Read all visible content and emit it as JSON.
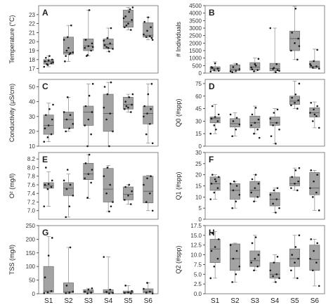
{
  "chart_data": [
    {
      "id": "A",
      "type": "box",
      "ylabel": "Temperature (°C)",
      "ylim": [
        16.5,
        24
      ],
      "yticks": [
        17,
        18,
        19,
        20,
        21,
        22,
        23
      ],
      "categories": [
        "S1",
        "S2",
        "S3",
        "S4",
        "S5",
        "S6"
      ],
      "stats": [
        {
          "min": 17.2,
          "q1": 17.5,
          "med": 17.8,
          "q3": 18.0,
          "max": 18.4
        },
        {
          "min": 17.8,
          "q1": 18.6,
          "med": 18.8,
          "q3": 20.5,
          "max": 21.8
        },
        {
          "min": 18.4,
          "q1": 19.0,
          "med": 19.5,
          "q3": 20.3,
          "max": 23.5
        },
        {
          "min": 18.9,
          "q1": 19.2,
          "med": 19.7,
          "q3": 20.3,
          "max": 21.5
        },
        {
          "min": 21.3,
          "q1": 21.6,
          "med": 22.2,
          "q3": 23.5,
          "max": 23.8
        },
        {
          "min": 20.2,
          "q1": 20.5,
          "med": 20.7,
          "q3": 22.1,
          "max": 22.7
        }
      ],
      "points": [
        [
          17.2,
          17.4,
          17.6,
          17.8,
          17.9,
          18.0,
          18.2,
          18.4,
          17.7,
          17.5
        ],
        [
          18.4,
          18.6,
          18.8,
          19.0,
          18.7,
          20.2,
          20.5,
          21.8,
          17.8,
          19.3
        ],
        [
          18.5,
          19.0,
          19.3,
          19.5,
          19.8,
          20.2,
          23.5,
          19.4,
          18.4
        ],
        [
          18.9,
          19.2,
          19.4,
          19.8,
          20.1,
          20.4,
          21.5,
          19.6,
          19.3
        ],
        [
          21.3,
          21.6,
          22.0,
          22.4,
          22.8,
          23.3,
          23.8,
          21.8,
          23.6,
          22.6
        ],
        [
          20.2,
          20.5,
          20.6,
          20.8,
          21.2,
          21.6,
          22.2,
          22.7,
          20.4
        ]
      ]
    },
    {
      "id": "B",
      "type": "box",
      "ylabel": "# Individuals",
      "ylim": [
        0,
        4500
      ],
      "yticks": [
        0,
        500,
        1000,
        1500,
        2000,
        2500,
        3000,
        3500,
        4000,
        4500
      ],
      "categories": [
        "S1",
        "S2",
        "S3",
        "S4",
        "S5",
        "S6"
      ],
      "stats": [
        {
          "min": 100,
          "q1": 180,
          "med": 300,
          "q3": 420,
          "max": 750
        },
        {
          "min": 50,
          "q1": 150,
          "med": 250,
          "q3": 550,
          "max": 650
        },
        {
          "min": 100,
          "q1": 200,
          "med": 400,
          "q3": 700,
          "max": 1000
        },
        {
          "min": 50,
          "q1": 150,
          "med": 300,
          "q3": 650,
          "max": 3000
        },
        {
          "min": 900,
          "q1": 1500,
          "med": 2300,
          "q3": 2800,
          "max": 4450
        },
        {
          "min": 300,
          "q1": 350,
          "med": 450,
          "q3": 800,
          "max": 1600
        }
      ],
      "points": [
        [
          100,
          200,
          300,
          400,
          650,
          150,
          350
        ],
        [
          60,
          150,
          260,
          400,
          600,
          120
        ],
        [
          120,
          200,
          380,
          600,
          950,
          250,
          500
        ],
        [
          60,
          150,
          280,
          600,
          3000,
          350,
          200
        ],
        [
          900,
          1500,
          2000,
          2300,
          2700,
          4300,
          1800
        ],
        [
          300,
          360,
          450,
          600,
          800,
          1550,
          500
        ]
      ]
    },
    {
      "id": "C",
      "type": "box",
      "ylabel": "Conductivity (μS/cm)",
      "ylim": [
        10,
        55
      ],
      "yticks": [
        10,
        20,
        30,
        40,
        50
      ],
      "categories": [
        "S1",
        "S2",
        "S3",
        "S4",
        "S5",
        "S6"
      ],
      "stats": [
        {
          "min": 13,
          "q1": 18,
          "med": 24,
          "q3": 31,
          "max": 39
        },
        {
          "min": 20,
          "q1": 22,
          "med": 28,
          "q3": 33,
          "max": 43
        },
        {
          "min": 10,
          "q1": 24,
          "med": 33,
          "q3": 37,
          "max": 52
        },
        {
          "min": 10,
          "q1": 20,
          "med": 32,
          "q3": 45,
          "max": 53
        },
        {
          "min": 33,
          "q1": 35,
          "med": 38,
          "q3": 43,
          "max": 45
        },
        {
          "min": 12,
          "q1": 25,
          "med": 32,
          "q3": 37,
          "max": 52
        }
      ],
      "points": [
        [
          13,
          16,
          18,
          22,
          24,
          28,
          31,
          35,
          38
        ],
        [
          20,
          22,
          25,
          28,
          31,
          33,
          43
        ],
        [
          10,
          18,
          24,
          28,
          33,
          37,
          44,
          52
        ],
        [
          10,
          20,
          28,
          32,
          36,
          45,
          53,
          50
        ],
        [
          33,
          35,
          36,
          38,
          40,
          43,
          45,
          37
        ],
        [
          12,
          18,
          25,
          30,
          32,
          35,
          37,
          45,
          52
        ]
      ]
    },
    {
      "id": "D",
      "type": "box",
      "ylabel": "Q0 (#spp)",
      "ylim": [
        0,
        80
      ],
      "yticks": [
        0,
        15,
        30,
        45,
        60,
        75
      ],
      "categories": [
        "S1",
        "S2",
        "S3",
        "S4",
        "S5",
        "S6"
      ],
      "stats": [
        {
          "min": 15,
          "q1": 28,
          "med": 33,
          "q3": 35,
          "max": 50
        },
        {
          "min": 12,
          "q1": 23,
          "med": 27,
          "q3": 33,
          "max": 40
        },
        {
          "min": 15,
          "q1": 22,
          "med": 28,
          "q3": 36,
          "max": 48
        },
        {
          "min": 3,
          "q1": 25,
          "med": 28,
          "q3": 35,
          "max": 45
        },
        {
          "min": 45,
          "q1": 50,
          "med": 54,
          "q3": 60,
          "max": 78
        },
        {
          "min": 22,
          "q1": 35,
          "med": 40,
          "q3": 46,
          "max": 53
        }
      ],
      "points": [
        [
          15,
          25,
          30,
          33,
          35,
          38,
          48,
          20
        ],
        [
          12,
          20,
          26,
          30,
          34,
          38
        ],
        [
          15,
          20,
          25,
          28,
          32,
          38,
          46,
          10
        ],
        [
          3,
          20,
          25,
          28,
          33,
          40,
          44,
          12
        ],
        [
          45,
          49,
          52,
          55,
          58,
          62,
          75
        ],
        [
          22,
          30,
          36,
          40,
          44,
          48,
          52,
          38
        ]
      ]
    },
    {
      "id": "E",
      "type": "box",
      "ylabel": "O² (mg/l)",
      "ylim": [
        6.8,
        8.35
      ],
      "yticks": [
        7.0,
        7.2,
        7.4,
        7.6,
        7.8,
        8.0,
        8.2
      ],
      "categories": [
        "S1",
        "S2",
        "S3",
        "S4",
        "S5",
        "S6"
      ],
      "stats": [
        {
          "min": 7.1,
          "q1": 7.52,
          "med": 7.58,
          "q3": 7.65,
          "max": 7.9
        },
        {
          "min": 6.85,
          "q1": 7.35,
          "med": 7.52,
          "q3": 7.65,
          "max": 7.85
        },
        {
          "min": 7.28,
          "q1": 7.72,
          "med": 7.85,
          "q3": 8.1,
          "max": 8.3
        },
        {
          "min": 6.98,
          "q1": 7.2,
          "med": 7.5,
          "q3": 7.98,
          "max": 8.05
        },
        {
          "min": 7.15,
          "q1": 7.25,
          "med": 7.38,
          "q3": 7.55,
          "max": 7.6
        },
        {
          "min": 7.0,
          "q1": 7.18,
          "med": 7.45,
          "q3": 7.8,
          "max": 7.82
        }
      ],
      "points": [
        [
          7.1,
          7.5,
          7.55,
          7.6,
          7.62,
          7.7,
          8.0
        ],
        [
          6.85,
          7.1,
          7.35,
          7.5,
          7.6,
          7.7,
          7.95
        ],
        [
          7.3,
          7.65,
          7.75,
          7.85,
          7.95,
          8.1,
          8.3
        ],
        [
          6.98,
          7.2,
          7.4,
          7.6,
          7.8,
          8.0,
          7.1
        ],
        [
          7.15,
          7.25,
          7.35,
          7.45,
          7.55,
          7.6
        ],
        [
          7.0,
          7.2,
          7.4,
          7.6,
          7.75,
          7.8
        ]
      ]
    },
    {
      "id": "F",
      "type": "box",
      "ylabel": "Q1 (#spp)",
      "ylim": [
        0,
        30
      ],
      "yticks": [
        0,
        5,
        10,
        15,
        20,
        25,
        30
      ],
      "categories": [
        "S1",
        "S2",
        "S3",
        "S4",
        "S5",
        "S6"
      ],
      "stats": [
        {
          "min": 9,
          "q1": 13,
          "med": 16,
          "q3": 19,
          "max": 20
        },
        {
          "min": 5,
          "q1": 9,
          "med": 13,
          "q3": 16,
          "max": 17
        },
        {
          "min": 8,
          "q1": 10,
          "med": 13,
          "q3": 17,
          "max": 20
        },
        {
          "min": 3,
          "q1": 6,
          "med": 9,
          "q3": 12,
          "max": 14
        },
        {
          "min": 13,
          "q1": 15,
          "med": 16,
          "q3": 19,
          "max": 23
        },
        {
          "min": 4,
          "q1": 11,
          "med": 14,
          "q3": 21,
          "max": 22
        }
      ],
      "points": [
        [
          9,
          12,
          14,
          16,
          18,
          19,
          20,
          17
        ],
        [
          5,
          8,
          11,
          13,
          15,
          16,
          17
        ],
        [
          8,
          10,
          12,
          14,
          16,
          18,
          20
        ],
        [
          3,
          5,
          7,
          9,
          11,
          13,
          14
        ],
        [
          13,
          14,
          16,
          17,
          19,
          22,
          23
        ],
        [
          4,
          10,
          12,
          14,
          17,
          20,
          22
        ]
      ]
    },
    {
      "id": "G",
      "type": "box",
      "ylabel": "TSS (mg/l)",
      "ylim": [
        0,
        250
      ],
      "yticks": [
        0,
        50,
        100,
        150,
        200,
        250
      ],
      "categories": [
        "S1",
        "S2",
        "S3",
        "S4",
        "S5",
        "S6"
      ],
      "stats": [
        {
          "min": 2,
          "q1": 5,
          "med": 10,
          "q3": 100,
          "max": 210
        },
        {
          "min": 2,
          "q1": 4,
          "med": 8,
          "q3": 40,
          "max": 170
        },
        {
          "min": 1,
          "q1": 4,
          "med": 8,
          "q3": 15,
          "max": 20
        },
        {
          "min": 1,
          "q1": 3,
          "med": 7,
          "q3": 15,
          "max": 135
        },
        {
          "min": 1,
          "q1": 3,
          "med": 5,
          "q3": 10,
          "max": 30
        },
        {
          "min": 1,
          "q1": 4,
          "med": 8,
          "q3": 18,
          "max": 40
        }
      ],
      "points": [
        [
          2,
          5,
          10,
          60,
          140,
          205
        ],
        [
          2,
          4,
          8,
          30,
          170
        ],
        [
          1,
          4,
          8,
          15,
          20
        ],
        [
          1,
          3,
          7,
          15,
          135
        ],
        [
          1,
          3,
          5,
          10,
          30
        ],
        [
          1,
          4,
          8,
          18,
          40
        ]
      ]
    },
    {
      "id": "H",
      "type": "box",
      "ylabel": "Q2 (#spp)",
      "ylim": [
        0,
        17.5
      ],
      "yticks": [
        0,
        2.5,
        5.0,
        7.5,
        10.0,
        12.5,
        15.0,
        17.5
      ],
      "categories": [
        "S1",
        "S2",
        "S3",
        "S4",
        "S5",
        "S6"
      ],
      "stats": [
        {
          "min": 4,
          "q1": 8,
          "med": 11.5,
          "q3": 14,
          "max": 16
        },
        {
          "min": 3,
          "q1": 6,
          "med": 9,
          "q3": 12.8,
          "max": 13
        },
        {
          "min": 6,
          "q1": 7,
          "med": 8.5,
          "q3": 11,
          "max": 15
        },
        {
          "min": 3,
          "q1": 4,
          "med": 5,
          "q3": 8,
          "max": 10
        },
        {
          "min": 4,
          "q1": 7,
          "med": 9,
          "q3": 11.5,
          "max": 15
        },
        {
          "min": 2,
          "q1": 6,
          "med": 8.8,
          "q3": 12.5,
          "max": 14
        }
      ],
      "points": [
        [
          4,
          7,
          9,
          11,
          12,
          14,
          15.5
        ],
        [
          3,
          5,
          7,
          9,
          11,
          12.5
        ],
        [
          6,
          7,
          8,
          9,
          10,
          13,
          14.5
        ],
        [
          3,
          4,
          4.5,
          5,
          6,
          8,
          9.5
        ],
        [
          4,
          6,
          8,
          9,
          10,
          12,
          15
        ],
        [
          2,
          6,
          8,
          9,
          11,
          13,
          14
        ]
      ]
    }
  ]
}
